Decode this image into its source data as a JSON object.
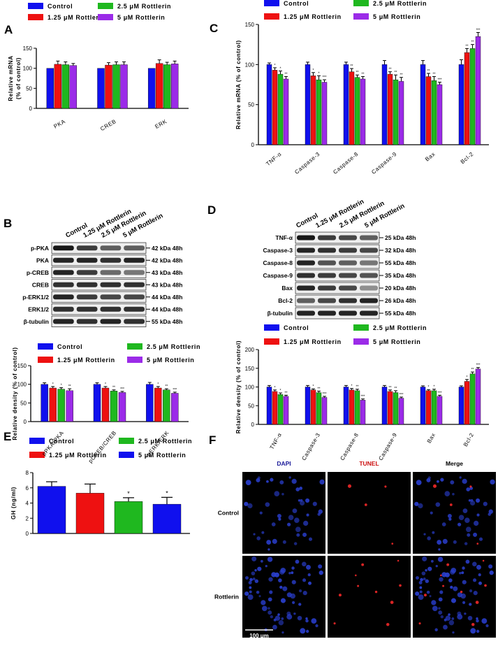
{
  "colors": {
    "control": "#1010ee",
    "r125": "#ee1111",
    "r25": "#1fb81f",
    "r5": "#9b2be8",
    "r5_e": "#1010ee"
  },
  "legend": {
    "control": "Control",
    "r125": "1.25 μM Rottlerin",
    "r25": "2.5 μM Rottlerin",
    "r5": "5 μM Rottlerin"
  },
  "panels": {
    "A": "A",
    "B": "B",
    "C": "C",
    "D": "D",
    "E": "E",
    "F": "F"
  },
  "chart_data": [
    {
      "panel": "A",
      "type": "bar",
      "categories": [
        "PKA",
        "CREB",
        "ERK"
      ],
      "ylabel": "Relative mRNA\n(% of control)",
      "ylim": [
        0,
        150
      ],
      "yticks": [
        0,
        50,
        100,
        150
      ],
      "series": [
        {
          "name": "Control",
          "values": [
            100,
            100,
            100
          ],
          "err": [
            0,
            0,
            0
          ],
          "sig": [
            "",
            "",
            ""
          ]
        },
        {
          "name": "1.25 μM Rottlerin",
          "values": [
            110,
            108,
            112
          ],
          "err": [
            8,
            6,
            9
          ],
          "sig": [
            "",
            "",
            ""
          ]
        },
        {
          "name": "2.5 μM Rottlerin",
          "values": [
            109,
            109,
            109
          ],
          "err": [
            7,
            7,
            6
          ],
          "sig": [
            "",
            "",
            ""
          ]
        },
        {
          "name": "5 μM Rottlerin",
          "values": [
            107,
            109,
            111
          ],
          "err": [
            5,
            7,
            7
          ],
          "sig": [
            "",
            "",
            ""
          ]
        }
      ]
    },
    {
      "panel": "C",
      "type": "bar",
      "categories": [
        "TNF-α",
        "Caspase-3",
        "Caspase-8",
        "Caspase-9",
        "Bax",
        "Bcl-2"
      ],
      "ylabel": "Relative mRNA (% of control)",
      "ylim": [
        0,
        150
      ],
      "yticks": [
        0,
        50,
        100,
        150
      ],
      "series": [
        {
          "name": "Control",
          "values": [
            100,
            100,
            100,
            100,
            100,
            100
          ],
          "err": [
            2,
            3,
            3,
            5,
            5,
            6
          ],
          "sig": [
            "",
            "",
            "",
            "",
            "",
            ""
          ]
        },
        {
          "name": "1.25 μM Rottlerin",
          "values": [
            93,
            86,
            91,
            88,
            85,
            115
          ],
          "err": [
            3,
            4,
            4,
            3,
            4,
            5
          ],
          "sig": [
            "*",
            "*",
            "**",
            "**",
            "**",
            "**"
          ]
        },
        {
          "name": "2.5 μM Rottlerin",
          "values": [
            88,
            81,
            84,
            81,
            80,
            120
          ],
          "err": [
            4,
            5,
            3,
            6,
            5,
            5
          ],
          "sig": [
            "*",
            "*",
            "**",
            "**",
            "**",
            "**"
          ]
        },
        {
          "name": "5 μM Rottlerin",
          "values": [
            82,
            78,
            82,
            79,
            75,
            135
          ],
          "err": [
            3,
            3,
            3,
            5,
            3,
            5
          ],
          "sig": [
            "**",
            "***",
            "**",
            "**",
            "***",
            "***"
          ]
        }
      ]
    },
    {
      "panel": "B",
      "type": "bar",
      "categories": [
        "pPKA/PKA",
        "pCREB/CREB",
        "pERK/ERK"
      ],
      "ylabel": "Relative density (% of control)",
      "ylim": [
        0,
        150
      ],
      "yticks": [
        0,
        50,
        100,
        150
      ],
      "series": [
        {
          "name": "Control",
          "values": [
            100,
            100,
            100
          ],
          "err": [
            4,
            4,
            5
          ],
          "sig": [
            "",
            "",
            ""
          ]
        },
        {
          "name": "1.25 μM Rottlerin",
          "values": [
            90,
            90,
            90
          ],
          "err": [
            4,
            4,
            4
          ],
          "sig": [
            "*",
            "*",
            "*"
          ]
        },
        {
          "name": "2.5 μM Rottlerin",
          "values": [
            87,
            82,
            85
          ],
          "err": [
            4,
            3,
            3
          ],
          "sig": [
            "*",
            "**",
            "**"
          ]
        },
        {
          "name": "5 μM Rottlerin",
          "values": [
            83,
            78,
            76
          ],
          "err": [
            5,
            3,
            3
          ],
          "sig": [
            "**",
            "***",
            "***"
          ]
        }
      ]
    },
    {
      "panel": "D",
      "type": "bar",
      "categories": [
        "TNF-α",
        "Caspase-3",
        "Caspase-8",
        "Caspase-9",
        "Bax",
        "Bcl-2"
      ],
      "ylabel": "Relative density (% of control)",
      "ylim": [
        0,
        200
      ],
      "yticks": [
        0,
        50,
        100,
        150,
        200
      ],
      "series": [
        {
          "name": "Control",
          "values": [
            100,
            100,
            100,
            100,
            100,
            100
          ],
          "err": [
            4,
            4,
            4,
            4,
            3,
            3
          ],
          "sig": [
            "",
            "",
            "",
            "",
            "",
            ""
          ]
        },
        {
          "name": "1.25 μM Rottlerin",
          "values": [
            88,
            92,
            92,
            88,
            90,
            115
          ],
          "err": [
            4,
            3,
            4,
            4,
            3,
            5
          ],
          "sig": [
            "*",
            "*",
            "*",
            "**",
            "*",
            "*"
          ]
        },
        {
          "name": "2.5 μM Rottlerin",
          "values": [
            80,
            85,
            90,
            85,
            90,
            135
          ],
          "err": [
            4,
            4,
            4,
            5,
            4,
            5
          ],
          "sig": [
            "*",
            "**",
            "**",
            "**",
            "*",
            "**"
          ]
        },
        {
          "name": "5 μM Rottlerin",
          "values": [
            75,
            72,
            65,
            70,
            75,
            148
          ],
          "err": [
            3,
            3,
            3,
            3,
            3,
            4
          ],
          "sig": [
            "**",
            "***",
            "***",
            "***",
            "***",
            "***"
          ]
        }
      ]
    },
    {
      "panel": "E",
      "type": "bar",
      "categories": [
        "Control",
        "1.25 μM Rottlerin",
        "2.5 μM Rottlerin",
        "5 μM Rottlerin"
      ],
      "ylabel": "GH (ng/ml)",
      "ylim": [
        0,
        8
      ],
      "yticks": [
        0,
        2,
        4,
        6,
        8
      ],
      "values": [
        6.2,
        5.3,
        4.2,
        3.85
      ],
      "err": [
        0.6,
        1.2,
        0.5,
        0.9
      ],
      "sig": [
        "",
        "",
        "*",
        "*"
      ]
    }
  ],
  "blot_b": {
    "lanes": [
      "Control",
      "1.25 μM Rottlerin",
      "2.5 μM Rottlerin",
      "5 μM Rottlerin"
    ],
    "rows": [
      {
        "label": "p-PKA",
        "size": "42 kDa 48h"
      },
      {
        "label": "PKA",
        "size": "42 kDa 48h"
      },
      {
        "label": "p-CREB",
        "size": "43 kDa 48h"
      },
      {
        "label": "CREB",
        "size": "43 kDa 48h"
      },
      {
        "label": "p-ERK1/2",
        "size": "44 kDa 48h"
      },
      {
        "label": "ERK1/2",
        "size": "44 kDa 48h"
      },
      {
        "label": "β-tubulin",
        "size": "55 kDa 48h"
      }
    ]
  },
  "blot_d": {
    "lanes": [
      "Control",
      "1.25 μM Rottlerin",
      "2.5 μM Rottlerin",
      "5 μM Rottlerin"
    ],
    "rows": [
      {
        "label": "TNF-α",
        "size": "25 kDa 48h"
      },
      {
        "label": "Caspase-3",
        "size": "32 kDa 48h"
      },
      {
        "label": "Caspase-8",
        "size": "55 kDa 48h"
      },
      {
        "label": "Caspase-9",
        "size": "35 kDa 48h"
      },
      {
        "label": "Bax",
        "size": "20 kDa 48h"
      },
      {
        "label": "Bcl-2",
        "size": "26 kDa 48h"
      },
      {
        "label": "β-tubulin",
        "size": "55 kDa 48h"
      }
    ]
  },
  "panel_f": {
    "columns": [
      "DAPI",
      "TUNEL",
      "Merge"
    ],
    "rows": [
      "Control",
      "Rottlerin"
    ],
    "scale_bar": "100 μm"
  }
}
